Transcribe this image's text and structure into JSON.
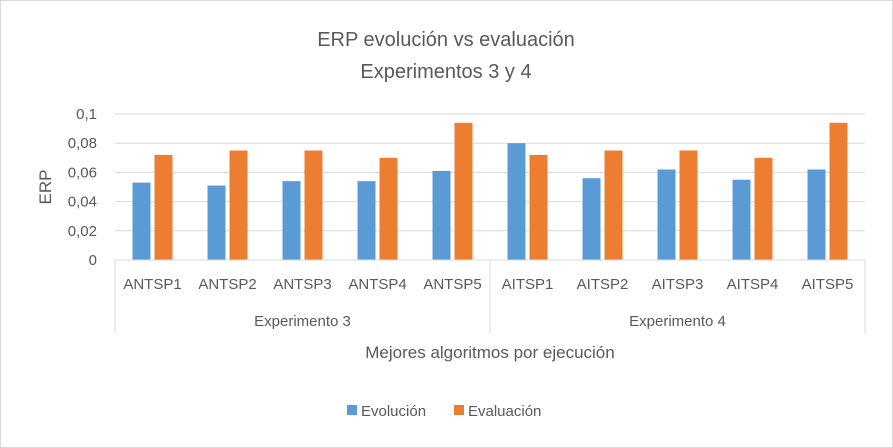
{
  "chart_data": {
    "type": "bar",
    "title": "ERP evolución vs evaluación",
    "subtitle": "Experimentos 3 y 4",
    "xlabel": "Mejores algoritmos por ejecución",
    "ylabel": "ERP",
    "ylim": [
      0,
      0.1
    ],
    "yticks": [
      "0",
      "0,02",
      "0,04",
      "0,06",
      "0,08",
      "0,1"
    ],
    "categories": [
      "ANTSP1",
      "ANTSP2",
      "ANTSP3",
      "ANTSP4",
      "ANTSP5",
      "AITSP1",
      "AITSP2",
      "AITSP3",
      "AITSP4",
      "AITSP5"
    ],
    "groups": [
      {
        "name": "Experimento 3",
        "count": 5
      },
      {
        "name": "Experimento 4",
        "count": 5
      }
    ],
    "series": [
      {
        "name": "Evolución",
        "color": "#5b9bd5",
        "values": [
          0.053,
          0.051,
          0.054,
          0.054,
          0.061,
          0.08,
          0.056,
          0.062,
          0.055,
          0.062
        ]
      },
      {
        "name": "Evaluación",
        "color": "#ed7d31",
        "values": [
          0.072,
          0.075,
          0.075,
          0.07,
          0.094,
          0.072,
          0.075,
          0.075,
          0.07,
          0.094
        ]
      }
    ],
    "grid": true,
    "legend": "bottom"
  }
}
